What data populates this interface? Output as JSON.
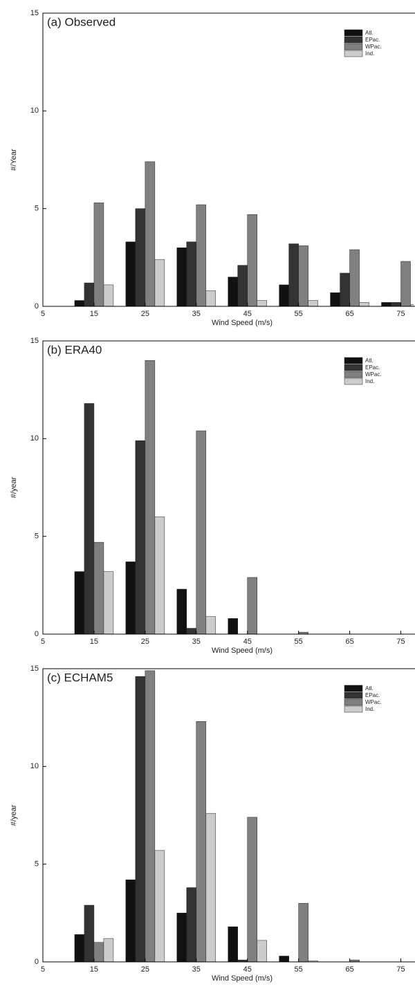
{
  "chart_data": [
    {
      "type": "bar",
      "title": "(a) Observed",
      "xlabel": "Wind Speed (m/s)",
      "ylabel": "#/Year",
      "x": [
        15,
        25,
        35,
        45,
        55,
        65,
        75
      ],
      "xlim": [
        5,
        77.5
      ],
      "xticks": [
        5,
        15,
        25,
        35,
        45,
        55,
        65,
        75
      ],
      "ylim": [
        0,
        15
      ],
      "yticks": [
        0,
        5,
        10,
        15
      ],
      "legend": "upper right",
      "series": [
        {
          "name": "Atl.",
          "color": "#111111",
          "values": [
            0.3,
            3.3,
            3.0,
            1.5,
            1.1,
            0.7,
            0.2
          ]
        },
        {
          "name": "EPac.",
          "color": "#333333",
          "values": [
            1.2,
            5.0,
            3.3,
            2.1,
            3.2,
            1.7,
            0.2
          ]
        },
        {
          "name": "WPac.",
          "color": "#808080",
          "values": [
            5.3,
            7.4,
            5.2,
            4.7,
            3.1,
            2.9,
            2.3
          ]
        },
        {
          "name": "Ind.",
          "color": "#cccccc",
          "values": [
            1.1,
            2.4,
            0.8,
            0.3,
            0.3,
            0.2,
            0.1
          ]
        }
      ]
    },
    {
      "type": "bar",
      "title": "(b) ERA40",
      "xlabel": "Wind Speed (m/s)",
      "ylabel": "#/year",
      "x": [
        15,
        25,
        35,
        45,
        55,
        65,
        75
      ],
      "xlim": [
        5,
        77.5
      ],
      "xticks": [
        5,
        15,
        25,
        35,
        45,
        55,
        65,
        75
      ],
      "ylim": [
        0,
        15
      ],
      "yticks": [
        0,
        5,
        10,
        15
      ],
      "legend": "upper right",
      "series": [
        {
          "name": "Atl.",
          "color": "#111111",
          "values": [
            3.2,
            3.7,
            2.3,
            0.8,
            0,
            0,
            0
          ]
        },
        {
          "name": "EPac.",
          "color": "#333333",
          "values": [
            11.8,
            9.9,
            0.3,
            0,
            0,
            0,
            0
          ]
        },
        {
          "name": "WPac.",
          "color": "#808080",
          "values": [
            4.7,
            14.0,
            10.4,
            2.9,
            0.1,
            0,
            0
          ]
        },
        {
          "name": "Ind.",
          "color": "#cccccc",
          "values": [
            3.2,
            6.0,
            0.9,
            0,
            0,
            0,
            0
          ]
        }
      ]
    },
    {
      "type": "bar",
      "title": "(c) ECHAM5",
      "xlabel": "Wind Speed (m/s)",
      "ylabel": "#/year",
      "x": [
        15,
        25,
        35,
        45,
        55,
        65,
        75
      ],
      "xlim": [
        5,
        77.5
      ],
      "xticks": [
        5,
        15,
        25,
        35,
        45,
        55,
        65,
        75
      ],
      "ylim": [
        0,
        15
      ],
      "yticks": [
        0,
        5,
        10,
        15
      ],
      "legend": "upper right",
      "series": [
        {
          "name": "Atl.",
          "color": "#111111",
          "values": [
            1.4,
            4.2,
            2.5,
            1.8,
            0.3,
            0,
            0
          ]
        },
        {
          "name": "EPac.",
          "color": "#333333",
          "values": [
            2.9,
            14.6,
            3.8,
            0.1,
            0,
            0,
            0
          ]
        },
        {
          "name": "WPac.",
          "color": "#808080",
          "values": [
            1.0,
            14.9,
            12.3,
            7.4,
            3.0,
            0.1,
            0
          ]
        },
        {
          "name": "Ind.",
          "color": "#cccccc",
          "values": [
            1.2,
            5.7,
            7.6,
            1.1,
            0.05,
            0,
            0
          ]
        }
      ]
    }
  ]
}
